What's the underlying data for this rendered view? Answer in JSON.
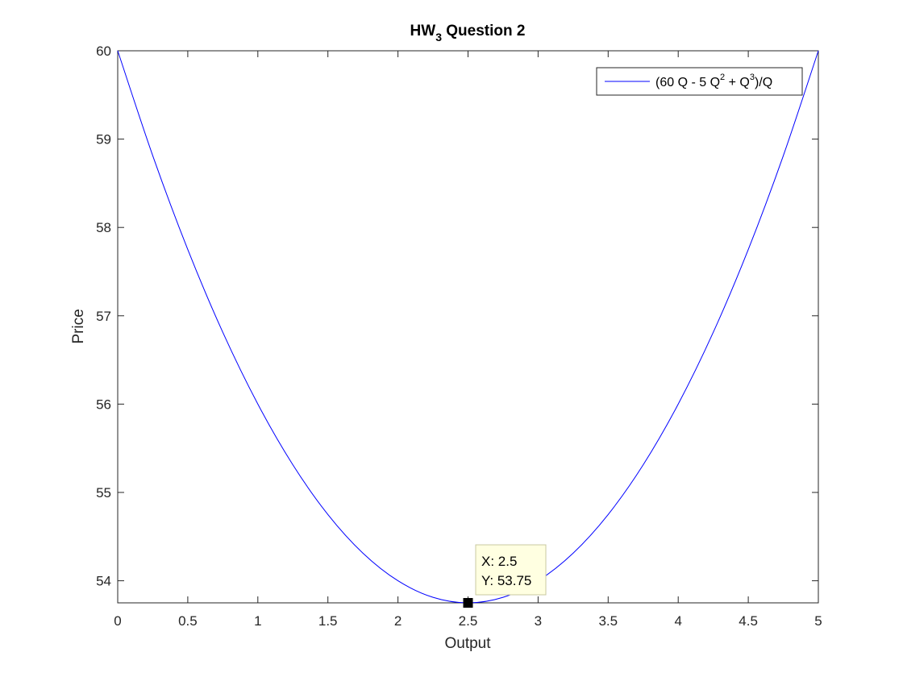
{
  "chart_data": {
    "type": "line",
    "title": "HW",
    "title_subscript": "3",
    "title_rest": " Question 2",
    "xlabel": "Output",
    "ylabel": "Price",
    "xlim": [
      0,
      5
    ],
    "ylim": [
      53.75,
      60
    ],
    "xticks": [
      0,
      0.5,
      1,
      1.5,
      2,
      2.5,
      3,
      3.5,
      4,
      4.5,
      5
    ],
    "xtick_labels": [
      "0",
      "0.5",
      "1",
      "1.5",
      "2",
      "2.5",
      "3",
      "3.5",
      "4",
      "4.5",
      "5"
    ],
    "yticks": [
      54,
      55,
      56,
      57,
      58,
      59,
      60
    ],
    "ytick_labels": [
      "54",
      "55",
      "56",
      "57",
      "58",
      "59",
      "60"
    ],
    "grid": false,
    "legend_position": "top-right",
    "series": [
      {
        "name": "(60 Q - 5 Q^2 + Q^3)/Q",
        "color": "#0000ff",
        "x": [
          0,
          0.25,
          0.5,
          0.75,
          1,
          1.25,
          1.5,
          1.75,
          2,
          2.25,
          2.5,
          2.75,
          3,
          3.25,
          3.5,
          3.75,
          4,
          4.25,
          4.5,
          4.75,
          5
        ],
        "y": [
          60,
          58.8125,
          57.75,
          56.8125,
          56,
          55.3125,
          54.75,
          54.3125,
          54,
          53.8125,
          53.75,
          53.8125,
          54,
          54.3125,
          54.75,
          55.3125,
          56,
          56.8125,
          57.75,
          58.8125,
          60
        ]
      }
    ],
    "legend": {
      "prefix": "(60 Q - 5 Q",
      "sup1": "2",
      "middle": " + Q",
      "sup2": "3",
      "suffix": ")/Q"
    },
    "datatip": {
      "x": 2.5,
      "y": 53.75,
      "line1": "X: 2.5",
      "line2": "Y: 53.75"
    }
  }
}
